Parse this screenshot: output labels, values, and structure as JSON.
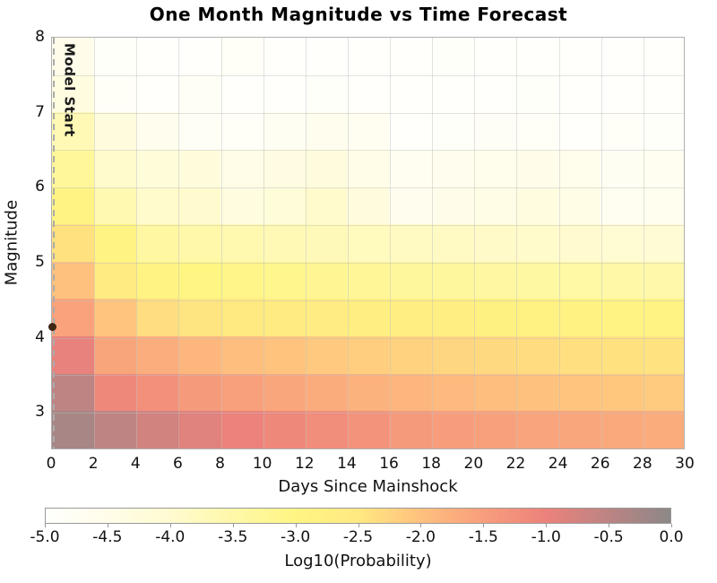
{
  "chart_data": {
    "type": "heatmap",
    "title": "One Month Magnitude vs Time Forecast",
    "xlabel": "Days Since Mainshock",
    "ylabel": "Magnitude",
    "colorbar_label": "Log10(Probability)",
    "xlim": [
      0,
      30
    ],
    "ylim": [
      2.5,
      8.0
    ],
    "x_bin_edges": [
      0,
      2,
      4,
      6,
      8,
      10,
      12,
      14,
      16,
      18,
      20,
      22,
      24,
      26,
      28,
      30
    ],
    "y_bin_edges": [
      2.5,
      3.0,
      3.5,
      4.0,
      4.5,
      5.0,
      5.5,
      6.0,
      6.5,
      7.0,
      7.5,
      8.0
    ],
    "xtick_values": [
      0,
      2,
      4,
      6,
      8,
      10,
      12,
      14,
      16,
      18,
      20,
      22,
      24,
      26,
      28,
      30
    ],
    "xtick_labels": [
      "0",
      "2",
      "4",
      "6",
      "8",
      "10",
      "12",
      "14",
      "16",
      "18",
      "20",
      "22",
      "24",
      "26",
      "28",
      "30"
    ],
    "ytick_values": [
      3,
      4,
      5,
      6,
      7,
      8
    ],
    "ytick_labels": [
      "3",
      "4",
      "5",
      "6",
      "7",
      "8"
    ],
    "grid": true,
    "values_note": "log10 probability per cell; rows listed bottom-up, magnitude bin 2.5-3 first; 15 two-day columns from day 0 to 30",
    "values_log10_probability": [
      [
        -0.28,
        -0.52,
        -0.72,
        -0.88,
        -1.0,
        -1.1,
        -1.2,
        -1.3,
        -1.42,
        -1.48,
        -1.53,
        -1.58,
        -1.62,
        -1.66,
        -1.7
      ],
      [
        -0.52,
        -1.1,
        -1.25,
        -1.42,
        -1.52,
        -1.62,
        -1.7,
        -1.78,
        -1.84,
        -1.9,
        -1.95,
        -2.0,
        -2.04,
        -2.08,
        -2.12
      ],
      [
        -0.95,
        -1.6,
        -1.72,
        -1.85,
        -1.95,
        -2.03,
        -2.1,
        -2.16,
        -2.21,
        -2.26,
        -2.3,
        -2.34,
        -2.37,
        -2.4,
        -2.43
      ],
      [
        -1.55,
        -2.05,
        -2.35,
        -2.45,
        -2.52,
        -2.58,
        -2.64,
        -2.69,
        -2.73,
        -2.77,
        -2.81,
        -2.84,
        -2.87,
        -2.9,
        -2.93
      ],
      [
        -2.0,
        -2.6,
        -2.9,
        -3.0,
        -3.08,
        -3.15,
        -3.21,
        -3.26,
        -3.31,
        -3.35,
        -3.39,
        -3.42,
        -3.45,
        -3.48,
        -3.51
      ],
      [
        -2.4,
        -2.95,
        -3.4,
        -3.5,
        -3.58,
        -3.66,
        -3.71,
        -3.76,
        -3.81,
        -3.85,
        -3.89,
        -3.93,
        -3.97,
        -4.05,
        -4.1
      ],
      [
        -2.95,
        -3.6,
        -3.95,
        -3.98,
        -4.32,
        -4.18,
        -3.96,
        -4.27,
        -4.62,
        -4.52,
        -4.42,
        -4.32,
        -4.42,
        -4.72,
        -4.66
      ],
      [
        -3.3,
        -3.95,
        -4.18,
        -4.24,
        -4.45,
        -4.35,
        -4.28,
        -4.45,
        -4.7,
        -4.6,
        -4.55,
        -4.5,
        -4.56,
        -4.76,
        -4.7
      ],
      [
        -3.65,
        -4.28,
        -4.6,
        -4.8,
        -4.9,
        -4.75,
        -4.62,
        -4.7,
        -5.0,
        -4.95,
        -4.85,
        -4.9,
        -5.0,
        -4.9,
        -4.96
      ],
      [
        -4.3,
        -4.9,
        -5.0,
        -4.8,
        -5.0,
        -5.0,
        -4.95,
        -5.0,
        -5.0,
        -5.0,
        -5.0,
        -4.95,
        -5.0,
        -5.0,
        -5.0
      ],
      [
        -4.5,
        -4.95,
        -5.0,
        -5.0,
        -4.88,
        -5.0,
        -5.0,
        -5.0,
        -5.0,
        -4.95,
        -5.0,
        -5.0,
        -5.0,
        -5.0,
        -5.0
      ]
    ],
    "colorbar": {
      "ticks": [
        -5.0,
        -4.5,
        -4.0,
        -3.5,
        -3.0,
        -2.5,
        -2.0,
        -1.5,
        -1.0,
        -0.5,
        0.0
      ],
      "tick_labels": [
        "-5.0",
        "-4.5",
        "-4.0",
        "-3.5",
        "-3.0",
        "-2.5",
        "-2.0",
        "-1.5",
        "-1.0",
        "-0.5",
        "0.0"
      ],
      "range": [
        -5.0,
        0.0
      ],
      "stops": [
        {
          "v": -5.0,
          "color": "#FFFFFC"
        },
        {
          "v": -4.5,
          "color": "#FFFDE9"
        },
        {
          "v": -4.0,
          "color": "#FFFBD0"
        },
        {
          "v": -3.5,
          "color": "#FFF8A9"
        },
        {
          "v": -3.0,
          "color": "#FFF583"
        },
        {
          "v": -2.5,
          "color": "#FFE981"
        },
        {
          "v": -2.0,
          "color": "#FFC17E"
        },
        {
          "v": -1.5,
          "color": "#F89E7C"
        },
        {
          "v": -1.0,
          "color": "#EC827B"
        },
        {
          "v": -0.5,
          "color": "#BC8483"
        },
        {
          "v": 0.0,
          "color": "#8C8887"
        }
      ]
    },
    "annotations": {
      "model_start": {
        "label": "Model Start",
        "x_day": 0.1,
        "line_color": "#ababab",
        "line_style": "dashed"
      },
      "mainshock_dot": {
        "x_day": 0,
        "magnitude": 4.15,
        "color": "#3f2713"
      }
    },
    "style": {
      "background": "#ffffff",
      "plot_border_color": "#b0b0b0",
      "gridline_color": "#bebebe"
    }
  }
}
